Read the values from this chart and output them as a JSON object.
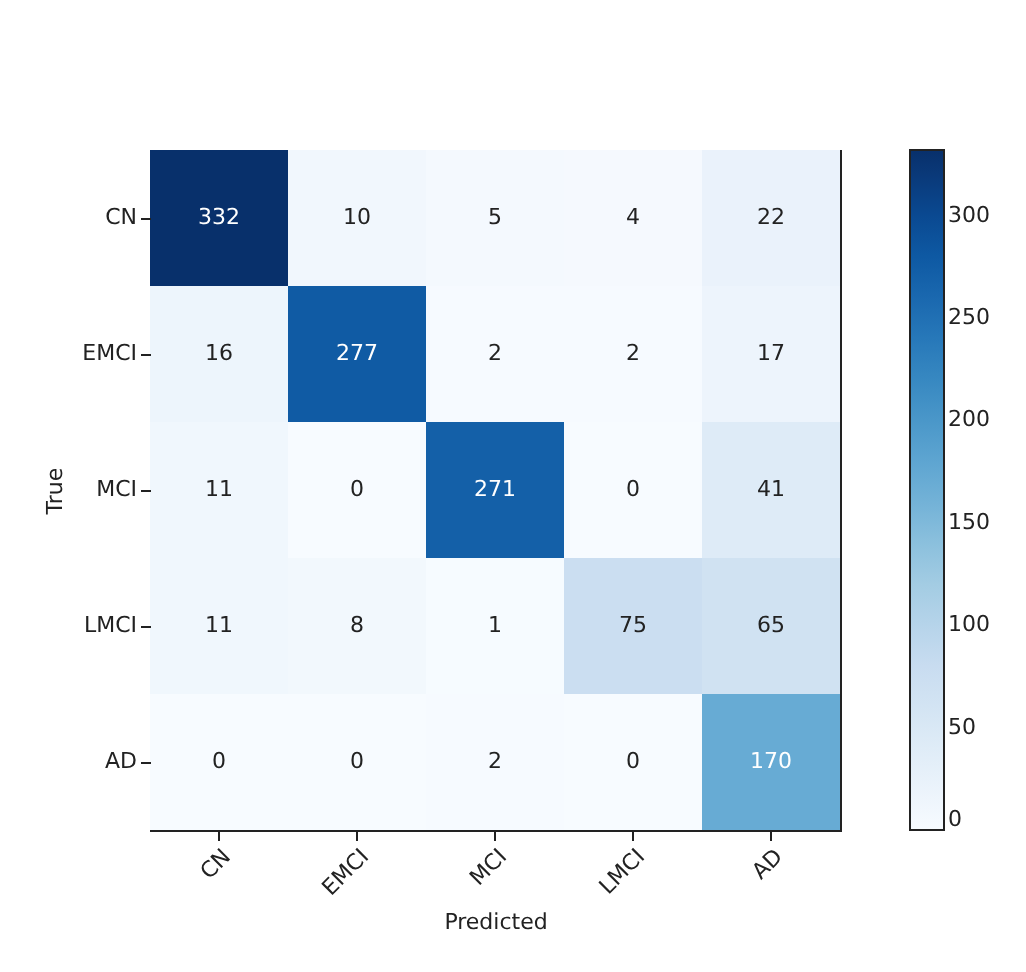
{
  "chart_data": {
    "type": "heatmap",
    "xlabel": "Predicted",
    "ylabel": "True",
    "categories": [
      "CN",
      "EMCI",
      "MCI",
      "LMCI",
      "AD"
    ],
    "y_categories": [
      "CN",
      "EMCI",
      "MCI",
      "LMCI",
      "AD"
    ],
    "cells": [
      [
        332,
        10,
        5,
        4,
        22
      ],
      [
        16,
        277,
        2,
        2,
        17
      ],
      [
        11,
        0,
        271,
        0,
        41
      ],
      [
        11,
        8,
        1,
        75,
        65
      ],
      [
        0,
        0,
        2,
        0,
        170
      ]
    ],
    "clim": [
      0,
      332
    ],
    "cticks": [
      0,
      50,
      100,
      150,
      200,
      250,
      300
    ],
    "data_labels": true
  }
}
